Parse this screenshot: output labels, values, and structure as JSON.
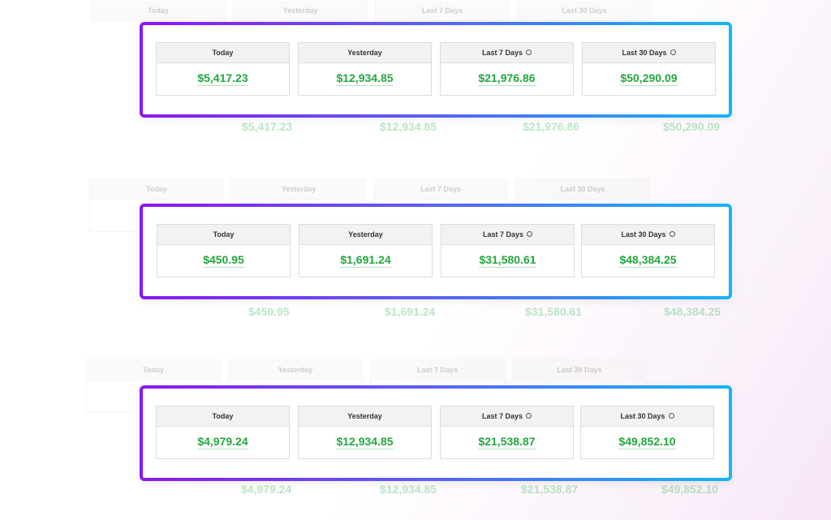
{
  "labels": {
    "today": "Today",
    "yesterday": "Yesterday",
    "last7": "Last 7 Days",
    "last30": "Last 30 Days"
  },
  "colors": {
    "value": "#22a63e",
    "gradient_start": "#8b17f0",
    "gradient_end": "#14b7f4"
  },
  "icons": {
    "period_info": "clock-icon"
  },
  "panels": [
    {
      "today": "$5,417.23",
      "yesterday": "$12,934.85",
      "last7": "$21,976.86",
      "last30": "$50,290.09"
    },
    {
      "today": "$450.95",
      "yesterday": "$1,691.24",
      "last7": "$31,580.61",
      "last30": "$48,384.25"
    },
    {
      "today": "$4,979.24",
      "yesterday": "$12,934.85",
      "last7": "$21,538.87",
      "last30": "$49,852.10"
    }
  ]
}
